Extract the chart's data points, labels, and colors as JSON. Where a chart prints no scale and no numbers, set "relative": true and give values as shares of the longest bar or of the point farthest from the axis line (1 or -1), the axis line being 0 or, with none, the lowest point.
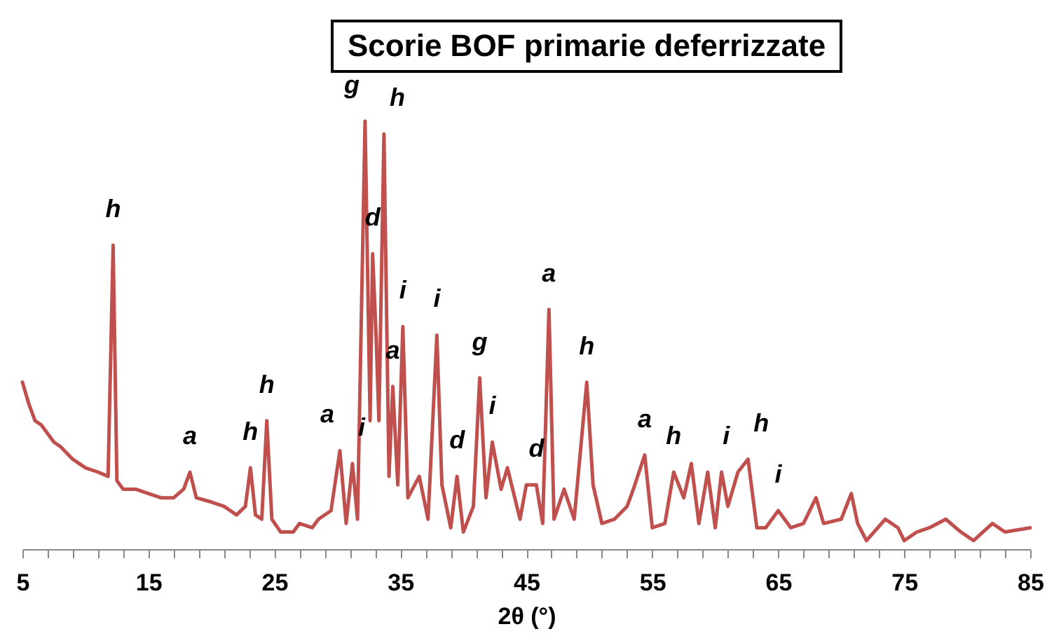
{
  "chart_data": {
    "type": "line",
    "title": "Scorie BOF primarie deferrizzate",
    "xlabel": "2θ (°)",
    "relative": true,
    "marker": "none",
    "line_style": "solid",
    "xlim": [
      5,
      85
    ],
    "xticks": [
      5,
      {
        "value": 7,
        "label": null
      },
      {
        "value": 9,
        "label": null
      },
      {
        "value": 11,
        "label": null
      },
      {
        "value": 13,
        "label": null
      },
      15,
      {
        "value": 17,
        "label": null
      },
      {
        "value": 19,
        "label": null
      },
      {
        "value": 21,
        "label": null
      },
      {
        "value": 23,
        "label": null
      },
      25,
      {
        "value": 27,
        "label": null
      },
      {
        "value": 29,
        "label": null
      },
      {
        "value": 31,
        "label": null
      },
      {
        "value": 33,
        "label": null
      },
      35,
      {
        "value": 37,
        "label": null
      },
      {
        "value": 39,
        "label": null
      },
      {
        "value": 41,
        "label": null
      },
      {
        "value": 43,
        "label": null
      },
      45,
      {
        "value": 47,
        "label": null
      },
      {
        "value": 49,
        "label": null
      },
      {
        "value": 51,
        "label": null
      },
      {
        "value": 53,
        "label": null
      },
      55,
      {
        "value": 57,
        "label": null
      },
      {
        "value": 59,
        "label": null
      },
      {
        "value": 61,
        "label": null
      },
      {
        "value": 63,
        "label": null
      },
      65,
      {
        "value": 67,
        "label": null
      },
      {
        "value": 69,
        "label": null
      },
      {
        "value": 71,
        "label": null
      },
      {
        "value": 73,
        "label": null
      },
      75,
      {
        "value": 77,
        "label": null
      },
      {
        "value": 79,
        "label": null
      },
      {
        "value": 81,
        "label": null
      },
      {
        "value": 83,
        "label": null
      },
      85
    ],
    "x": [
      5,
      5.5,
      6,
      6.5,
      7,
      7.5,
      8,
      9,
      10,
      11,
      11.8,
      12.2,
      12.5,
      13,
      14,
      15,
      16,
      17,
      17.8,
      18.3,
      18.8,
      20,
      21,
      22,
      22.7,
      23.1,
      23.5,
      24,
      24.4,
      24.8,
      25.5,
      26.5,
      27,
      28,
      28.5,
      29.5,
      30.2,
      30.7,
      31.2,
      31.6,
      32.2,
      32.6,
      32.8,
      33.1,
      33.3,
      33.7,
      34.1,
      34.4,
      34.8,
      35.2,
      35.6,
      36.5,
      37.2,
      37.9,
      38.3,
      39,
      39.5,
      40,
      40.8,
      41.3,
      41.8,
      42.3,
      43,
      43.5,
      44.5,
      45,
      45.8,
      46.3,
      46.8,
      47.2,
      48,
      48.8,
      49.8,
      50.3,
      51,
      52,
      53,
      53.5,
      54.4,
      55,
      56,
      56.7,
      57.5,
      58.1,
      58.7,
      59.4,
      60,
      60.5,
      61,
      61.8,
      62.6,
      63.3,
      64,
      65,
      66,
      67,
      68,
      68.6,
      70,
      70.8,
      71.3,
      72,
      73.5,
      74.5,
      75,
      76,
      77,
      78.3,
      79.5,
      80.5,
      82,
      83,
      85
    ],
    "values": [
      0.39,
      0.34,
      0.3,
      0.29,
      0.27,
      0.25,
      0.24,
      0.21,
      0.19,
      0.18,
      0.17,
      0.71,
      0.16,
      0.14,
      0.14,
      0.13,
      0.12,
      0.12,
      0.14,
      0.18,
      0.12,
      0.11,
      0.1,
      0.08,
      0.1,
      0.19,
      0.08,
      0.07,
      0.3,
      0.07,
      0.04,
      0.04,
      0.06,
      0.05,
      0.07,
      0.09,
      0.23,
      0.06,
      0.2,
      0.07,
      1.0,
      0.3,
      0.69,
      0.48,
      0.3,
      0.97,
      0.17,
      0.38,
      0.15,
      0.52,
      0.12,
      0.17,
      0.07,
      0.5,
      0.15,
      0.05,
      0.17,
      0.04,
      0.1,
      0.4,
      0.12,
      0.25,
      0.14,
      0.19,
      0.07,
      0.15,
      0.15,
      0.06,
      0.56,
      0.07,
      0.14,
      0.07,
      0.39,
      0.15,
      0.06,
      0.07,
      0.1,
      0.14,
      0.22,
      0.05,
      0.06,
      0.18,
      0.12,
      0.2,
      0.06,
      0.18,
      0.05,
      0.18,
      0.1,
      0.18,
      0.21,
      0.05,
      0.05,
      0.09,
      0.05,
      0.06,
      0.12,
      0.06,
      0.07,
      0.13,
      0.06,
      0.02,
      0.07,
      0.05,
      0.02,
      0.04,
      0.05,
      0.07,
      0.04,
      0.02,
      0.06,
      0.04,
      0.05
    ],
    "color": "#c0504d",
    "annotations": [
      {
        "text": "h",
        "x": 12.2,
        "y": 0.71
      },
      {
        "text": "a",
        "x": 18.3,
        "y": 0.18
      },
      {
        "text": "h",
        "x": 23.1,
        "y": 0.19
      },
      {
        "text": "h",
        "x": 24.4,
        "y": 0.3
      },
      {
        "text": "a",
        "x": 30.2,
        "y": 0.23
      },
      {
        "text": "i",
        "x": 31.2,
        "y": 0.2
      },
      {
        "text": "g",
        "x": 32.2,
        "y": 1.0
      },
      {
        "text": "d",
        "x": 32.8,
        "y": 0.69
      },
      {
        "text": "h",
        "x": 33.7,
        "y": 0.97
      },
      {
        "text": "a",
        "x": 34.4,
        "y": 0.38
      },
      {
        "text": "i",
        "x": 35.2,
        "y": 0.52
      },
      {
        "text": "i",
        "x": 37.9,
        "y": 0.5
      },
      {
        "text": "d",
        "x": 39.5,
        "y": 0.17
      },
      {
        "text": "g",
        "x": 41.3,
        "y": 0.4
      },
      {
        "text": "i",
        "x": 42.3,
        "y": 0.25
      },
      {
        "text": "d",
        "x": 45.8,
        "y": 0.15
      },
      {
        "text": "a",
        "x": 46.8,
        "y": 0.56
      },
      {
        "text": "h",
        "x": 49.8,
        "y": 0.39
      },
      {
        "text": "a",
        "x": 54.4,
        "y": 0.22
      },
      {
        "text": "h",
        "x": 56.7,
        "y": 0.18
      },
      {
        "text": "i",
        "x": 61.6,
        "y": 0.18
      },
      {
        "text": "h",
        "x": 62.6,
        "y": 0.21
      },
      {
        "text": "i",
        "x": 65,
        "y": 0.09
      }
    ]
  }
}
